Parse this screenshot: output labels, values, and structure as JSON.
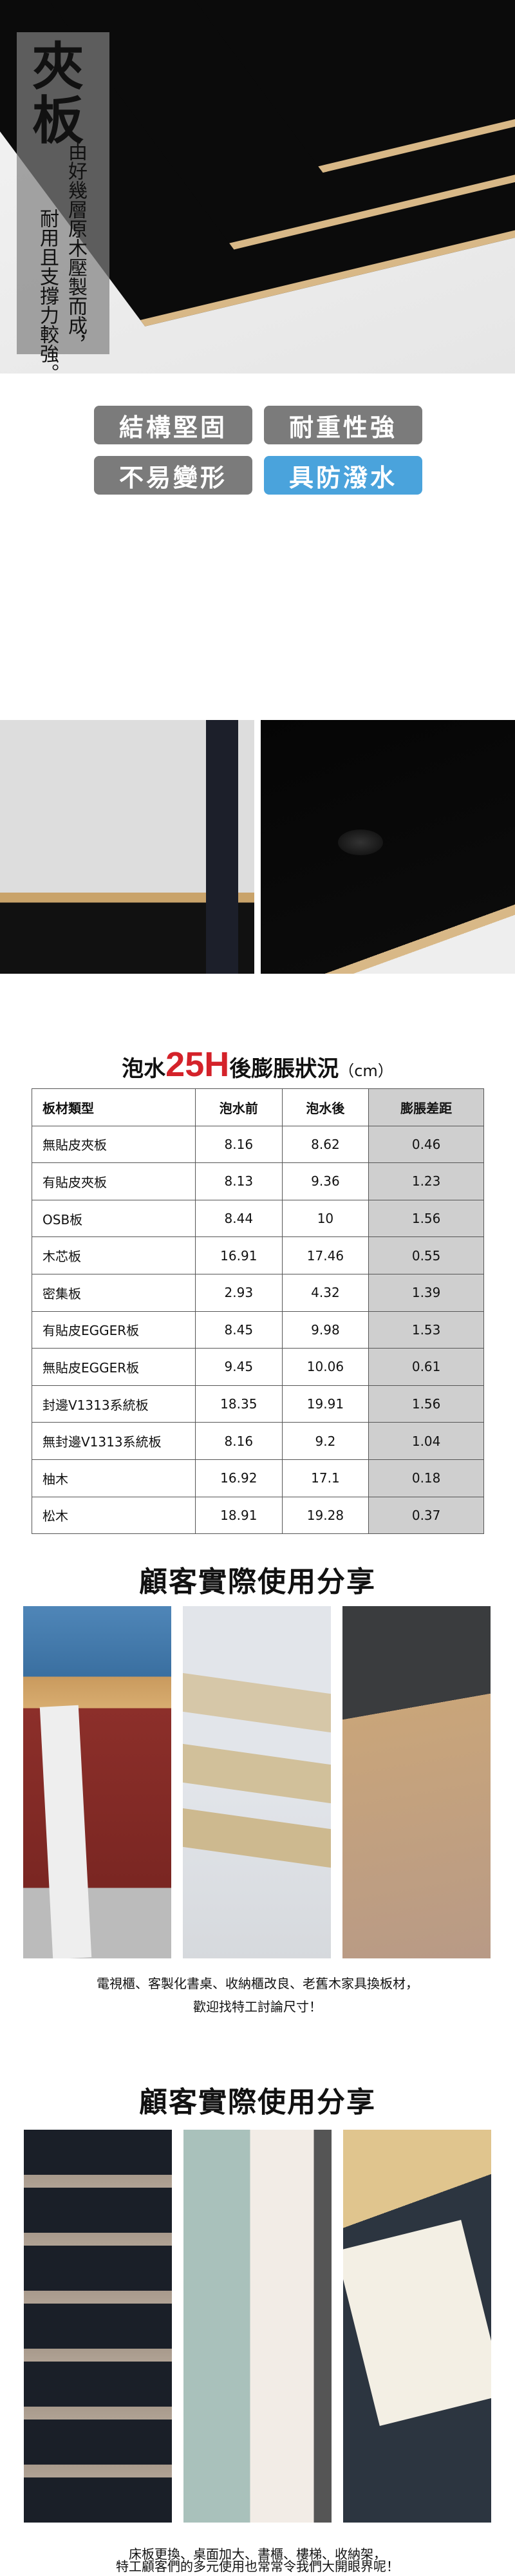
{
  "hero": {
    "title": "夾板",
    "line1": "由好幾層原木壓製而成，",
    "line2": "耐用且支撐力較強。"
  },
  "features": [
    {
      "label": "結構堅固",
      "color": "#7b7b7b"
    },
    {
      "label": "耐重性強",
      "color": "#7b7b7b"
    },
    {
      "label": "不易變形",
      "color": "#7b7b7b"
    },
    {
      "label": "具防潑水",
      "color": "#4aa3dc"
    }
  ],
  "table": {
    "title_prefix": "泡水",
    "title_highlight": "25H",
    "title_suffix": "後膨脹狀況",
    "unit": "（cm）",
    "highlight_color": "#d4222a",
    "headers": [
      "板材類型",
      "泡水前",
      "泡水後",
      "膨脹差距"
    ],
    "rows": [
      [
        "無貼皮夾板",
        "8.16",
        "8.62",
        "0.46"
      ],
      [
        "有貼皮夾板",
        "8.13",
        "9.36",
        "1.23"
      ],
      [
        "OSB板",
        "8.44",
        "10",
        "1.56"
      ],
      [
        "木芯板",
        "16.91",
        "17.46",
        "0.55"
      ],
      [
        "密集板",
        "2.93",
        "4.32",
        "1.39"
      ],
      [
        "有貼皮EGGER板",
        "8.45",
        "9.98",
        "1.53"
      ],
      [
        "無貼皮EGGER板",
        "9.45",
        "10.06",
        "0.61"
      ],
      [
        "封邊V1313系統板",
        "18.35",
        "19.91",
        "1.56"
      ],
      [
        "無封邊V1313系統板",
        "8.16",
        "9.2",
        "1.04"
      ],
      [
        "柚木",
        "16.92",
        "17.1",
        "0.18"
      ],
      [
        "松木",
        "18.91",
        "19.28",
        "0.37"
      ]
    ]
  },
  "share1": {
    "title": "顧客實際使用分享",
    "caption1": "電視櫃、客製化書桌、收納櫃改良、老舊木家具換板材，",
    "caption2": "歡迎找特工討論尺寸！"
  },
  "share2": {
    "title": "顧客實際使用分享",
    "caption1": "床板更換、桌面加大、書櫃、樓梯、收納架，",
    "caption2": "特工顧客們的多元使用也常常令我們大開眼界呢！"
  }
}
